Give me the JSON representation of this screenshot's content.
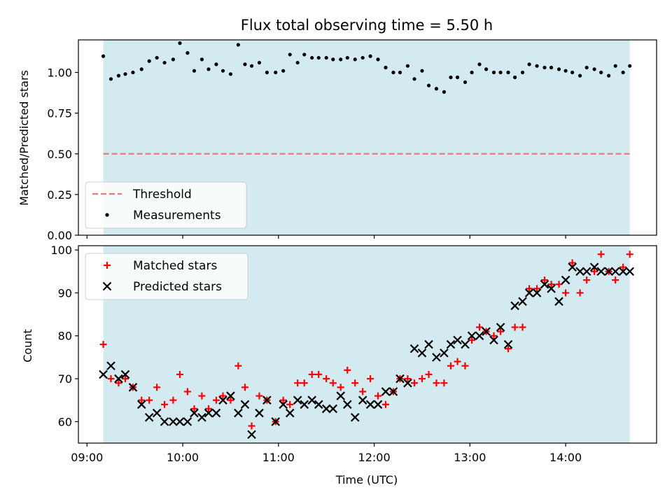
{
  "colors": {
    "shade": "#d4eaf1",
    "threshold": "#f07878",
    "matched": "#ff0000",
    "predicted": "#000000",
    "axis": "#000000"
  },
  "chart_data": [
    {
      "type": "scatter",
      "title": "Flux total observing time = 5.50 h",
      "xlabel": "",
      "ylabel": "Matched/Predicted stars",
      "ylim": [
        0.0,
        1.2
      ],
      "yticks": [
        0.0,
        0.25,
        0.5,
        0.75,
        1.0
      ],
      "ytick_labels": [
        "0.00",
        "0.25",
        "0.50",
        "0.75",
        "1.00"
      ],
      "xlim_hours": [
        8.91,
        14.95
      ],
      "shaded_span_hours": [
        9.17,
        14.67
      ],
      "threshold": 0.5,
      "legend": [
        "Threshold",
        "Measurements"
      ],
      "series": [
        {
          "name": "Measurements",
          "x_hours": [
            9.17,
            9.25,
            9.33,
            9.4,
            9.48,
            9.57,
            9.65,
            9.73,
            9.81,
            9.9,
            9.97,
            10.05,
            10.12,
            10.2,
            10.27,
            10.35,
            10.42,
            10.5,
            10.58,
            10.65,
            10.72,
            10.8,
            10.88,
            10.97,
            11.05,
            11.12,
            11.2,
            11.27,
            11.35,
            11.42,
            11.5,
            11.57,
            11.65,
            11.72,
            11.8,
            11.88,
            11.96,
            12.04,
            12.12,
            12.2,
            12.27,
            12.35,
            12.42,
            12.5,
            12.57,
            12.65,
            12.73,
            12.8,
            12.87,
            12.95,
            13.02,
            13.1,
            13.17,
            13.25,
            13.32,
            13.4,
            13.47,
            13.55,
            13.62,
            13.7,
            13.78,
            13.85,
            13.93,
            14.0,
            14.07,
            14.15,
            14.22,
            14.3,
            14.37,
            14.45,
            14.52,
            14.6,
            14.67
          ],
          "values": [
            1.1,
            0.96,
            0.98,
            0.99,
            1.0,
            1.02,
            1.07,
            1.09,
            1.06,
            1.08,
            1.18,
            1.12,
            1.01,
            1.08,
            1.02,
            1.05,
            1.01,
            0.99,
            1.17,
            1.05,
            1.04,
            1.06,
            1.0,
            1.0,
            1.01,
            1.11,
            1.06,
            1.11,
            1.09,
            1.09,
            1.09,
            1.08,
            1.08,
            1.09,
            1.08,
            1.09,
            1.1,
            1.08,
            1.03,
            1.0,
            1.0,
            1.04,
            0.96,
            1.01,
            0.92,
            0.9,
            0.88,
            0.97,
            0.97,
            0.94,
            1.0,
            1.05,
            1.02,
            1.0,
            1.0,
            1.0,
            0.97,
            1.0,
            1.05,
            1.04,
            1.03,
            1.03,
            1.02,
            1.01,
            1.0,
            0.98,
            1.03,
            1.02,
            1.0,
            0.98,
            1.04,
            1.0,
            1.04
          ]
        }
      ]
    },
    {
      "type": "scatter",
      "title": "",
      "xlabel": "Time (UTC)",
      "ylabel": "Count",
      "ylim": [
        55,
        101
      ],
      "yticks": [
        60,
        70,
        80,
        90,
        100
      ],
      "ytick_labels": [
        "60",
        "70",
        "80",
        "90",
        "100"
      ],
      "xlim_hours": [
        8.91,
        14.95
      ],
      "xticks_hours": [
        9,
        10,
        11,
        12,
        13,
        14
      ],
      "xtick_labels": [
        "09:00",
        "10:00",
        "11:00",
        "12:00",
        "13:00",
        "14:00"
      ],
      "shaded_span_hours": [
        9.17,
        14.67
      ],
      "legend": [
        "Matched stars",
        "Predicted stars"
      ],
      "x_hours": [
        9.17,
        9.25,
        9.33,
        9.4,
        9.48,
        9.57,
        9.65,
        9.73,
        9.81,
        9.9,
        9.97,
        10.05,
        10.12,
        10.2,
        10.27,
        10.35,
        10.42,
        10.5,
        10.58,
        10.65,
        10.72,
        10.8,
        10.88,
        10.97,
        11.05,
        11.12,
        11.2,
        11.27,
        11.35,
        11.42,
        11.5,
        11.57,
        11.65,
        11.72,
        11.8,
        11.88,
        11.96,
        12.04,
        12.12,
        12.2,
        12.27,
        12.35,
        12.42,
        12.5,
        12.57,
        12.65,
        12.73,
        12.8,
        12.87,
        12.95,
        13.02,
        13.1,
        13.17,
        13.25,
        13.32,
        13.4,
        13.47,
        13.55,
        13.62,
        13.7,
        13.78,
        13.85,
        13.93,
        14.0,
        14.07,
        14.15,
        14.22,
        14.3,
        14.37,
        14.45,
        14.52,
        14.6,
        14.67
      ],
      "series": [
        {
          "name": "Matched stars",
          "marker": "+",
          "values": [
            78,
            70,
            69,
            70,
            68,
            65,
            65,
            68,
            64,
            65,
            71,
            67,
            63,
            66,
            63,
            65,
            66,
            65,
            73,
            68,
            59,
            66,
            65,
            60,
            65,
            64,
            69,
            69,
            71,
            71,
            70,
            69,
            68,
            72,
            69,
            67,
            70,
            66,
            64,
            67,
            70,
            70,
            69,
            70,
            71,
            69,
            69,
            73,
            74,
            73,
            79,
            82,
            81,
            80,
            81,
            77,
            82,
            82,
            91,
            91,
            93,
            92,
            92,
            90,
            97,
            90,
            93,
            95,
            99,
            95,
            93,
            96,
            99
          ]
        },
        {
          "name": "Predicted stars",
          "marker": "x",
          "values": [
            71,
            73,
            70,
            71,
            68,
            64,
            61,
            62,
            60,
            60,
            60,
            60,
            62,
            61,
            62,
            62,
            65,
            66,
            62,
            64,
            57,
            62,
            65,
            60,
            64,
            62,
            65,
            64,
            65,
            64,
            63,
            63,
            66,
            64,
            61,
            65,
            64,
            64,
            67,
            67,
            70,
            69,
            77,
            76,
            78,
            75,
            76,
            78,
            79,
            78,
            80,
            80,
            81,
            79,
            82,
            78,
            87,
            88,
            90,
            90,
            92,
            91,
            88,
            93,
            96,
            95,
            95,
            96,
            95,
            95,
            95,
            95,
            95
          ]
        }
      ]
    }
  ]
}
